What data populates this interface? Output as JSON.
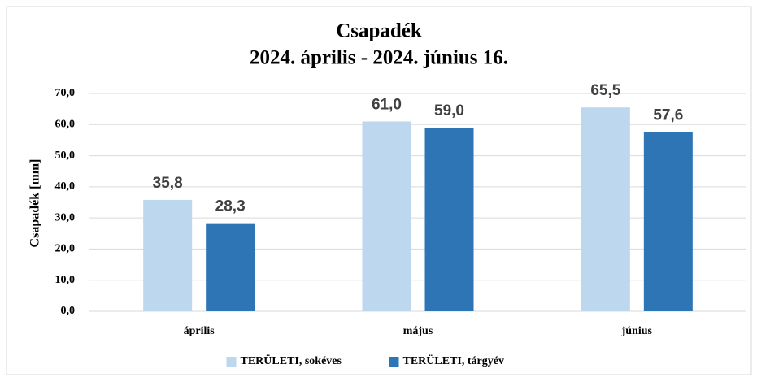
{
  "chart_data": {
    "type": "bar",
    "title": "Csapadék",
    "subtitle": "2024. április - 2024. június 16.",
    "y_label": "Csapadék [mm]",
    "categories": [
      "április",
      "május",
      "június"
    ],
    "series": [
      {
        "name": "TERÜLETI, sokéves",
        "color": "#bdd7ee",
        "values": [
          35.8,
          61.0,
          65.5
        ],
        "value_labels": [
          "35,8",
          "61,0",
          "65,5"
        ]
      },
      {
        "name": "TERÜLETI, tárgyév",
        "color": "#2e75b6",
        "values": [
          28.3,
          59.0,
          57.6
        ],
        "value_labels": [
          "28,3",
          "59,0",
          "57,6"
        ]
      }
    ],
    "ylim": [
      0,
      70
    ],
    "yticks": [
      {
        "value": 0,
        "label": "0,0"
      },
      {
        "value": 10,
        "label": "10,0"
      },
      {
        "value": 20,
        "label": "20,0"
      },
      {
        "value": 30,
        "label": "30,0"
      },
      {
        "value": 40,
        "label": "40,0"
      },
      {
        "value": 50,
        "label": "50,0"
      },
      {
        "value": 60,
        "label": "60,0"
      },
      {
        "value": 70,
        "label": "70,0"
      }
    ],
    "grid": true,
    "legend": "bottom"
  }
}
